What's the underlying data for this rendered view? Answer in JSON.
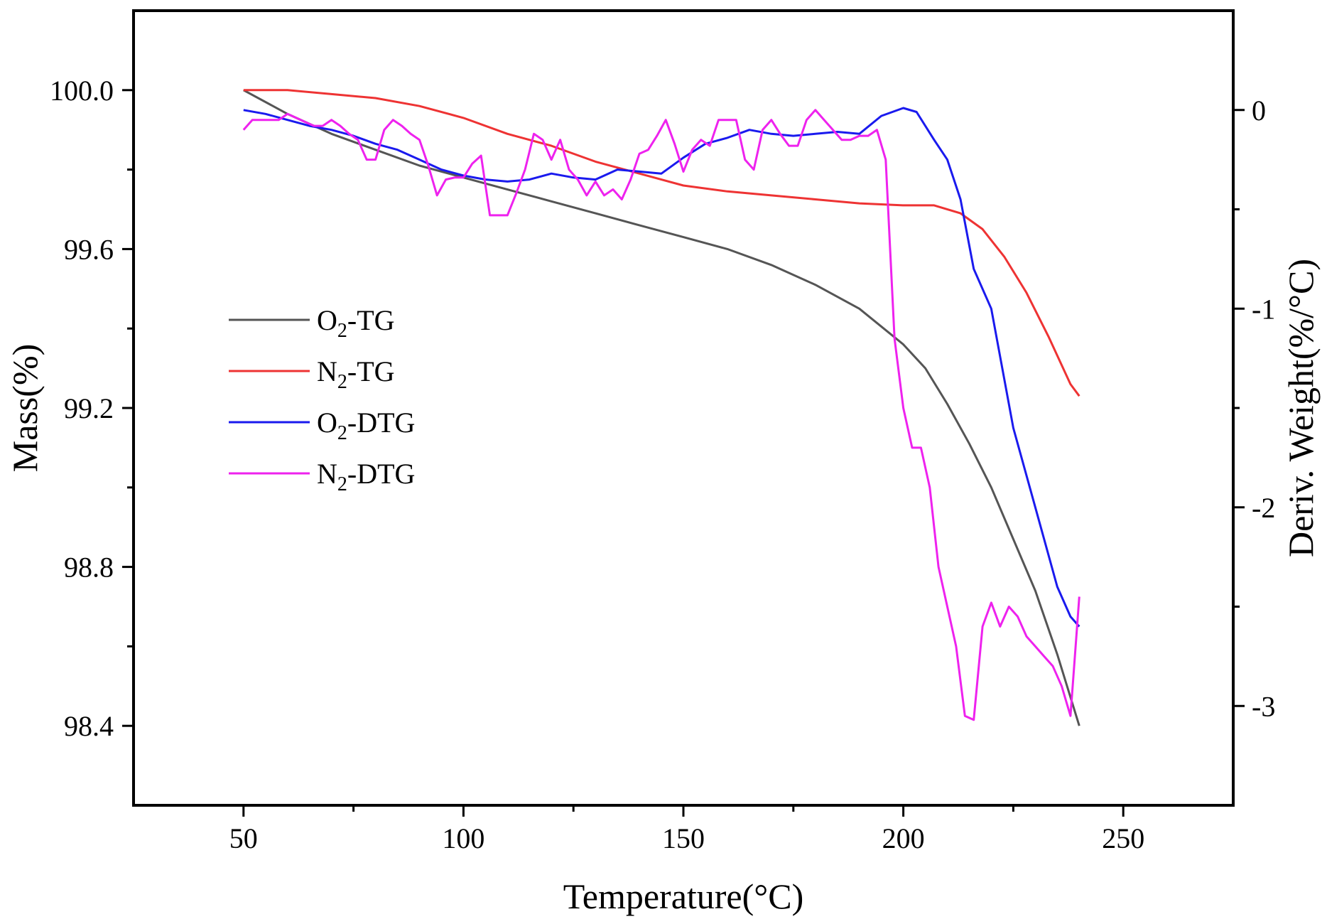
{
  "chart_data": {
    "type": "line",
    "title": "",
    "xlabel": "Temperature(°C)",
    "ylabel_left": "Mass(%)",
    "ylabel_right": "Deriv. Weight(%/°C)",
    "xlim": [
      25,
      275
    ],
    "ylim_left": [
      98.2,
      100.2
    ],
    "ylim_right": [
      -3.5,
      0.5
    ],
    "x_ticks": [
      50,
      100,
      150,
      200,
      250
    ],
    "x_tick_labels": [
      "50",
      "100",
      "150",
      "200",
      "250"
    ],
    "y_left_ticks": [
      98.4,
      98.8,
      99.2,
      99.6,
      100.0
    ],
    "y_left_tick_labels": [
      "98.4",
      "98.8",
      "99.2",
      "99.6",
      "100.0"
    ],
    "y_right_ticks": [
      -3,
      -2,
      -1,
      0
    ],
    "y_right_tick_labels": [
      "-3",
      "-2",
      "-1",
      "0"
    ],
    "grid": false,
    "legend_position": "center-left",
    "series": [
      {
        "name": "O2-TG",
        "label_main": "O",
        "label_sub": "2",
        "label_rest": "-TG",
        "axis": "left",
        "color": "#555555",
        "x": [
          50,
          60,
          70,
          80,
          90,
          100,
          110,
          120,
          130,
          140,
          150,
          160,
          170,
          180,
          190,
          200,
          205,
          210,
          215,
          220,
          225,
          230,
          235,
          240
        ],
        "y": [
          100.0,
          99.94,
          99.89,
          99.85,
          99.81,
          99.78,
          99.75,
          99.72,
          99.69,
          99.66,
          99.63,
          99.6,
          99.56,
          99.51,
          99.45,
          99.36,
          99.3,
          99.21,
          99.11,
          99.0,
          98.87,
          98.74,
          98.58,
          98.4
        ]
      },
      {
        "name": "N2-TG",
        "label_main": "N",
        "label_sub": "2",
        "label_rest": "-TG",
        "axis": "left",
        "color": "#ee3333",
        "x": [
          50,
          60,
          70,
          80,
          90,
          100,
          110,
          120,
          130,
          140,
          150,
          160,
          170,
          180,
          190,
          200,
          207,
          213,
          218,
          223,
          228,
          233,
          238,
          240
        ],
        "y": [
          100.0,
          100.0,
          99.99,
          99.98,
          99.96,
          99.93,
          99.89,
          99.86,
          99.82,
          99.79,
          99.76,
          99.745,
          99.735,
          99.725,
          99.715,
          99.71,
          99.71,
          99.69,
          99.65,
          99.58,
          99.49,
          99.38,
          99.26,
          99.23
        ]
      },
      {
        "name": "O2-DTG",
        "label_main": "O",
        "label_sub": "2",
        "label_rest": "-DTG",
        "axis": "right",
        "color": "#1a1aee",
        "x": [
          50,
          55,
          60,
          65,
          70,
          75,
          80,
          85,
          90,
          95,
          100,
          105,
          110,
          115,
          120,
          125,
          130,
          135,
          140,
          145,
          150,
          155,
          160,
          165,
          170,
          175,
          180,
          185,
          190,
          195,
          200,
          203,
          207,
          210,
          213,
          216,
          220,
          225,
          230,
          235,
          238,
          240
        ],
        "y": [
          0.0,
          -0.02,
          -0.05,
          -0.08,
          -0.1,
          -0.13,
          -0.17,
          -0.2,
          -0.25,
          -0.3,
          -0.33,
          -0.35,
          -0.36,
          -0.35,
          -0.32,
          -0.34,
          -0.35,
          -0.3,
          -0.31,
          -0.32,
          -0.24,
          -0.17,
          -0.14,
          -0.1,
          -0.12,
          -0.13,
          -0.12,
          -0.11,
          -0.12,
          -0.03,
          0.01,
          -0.01,
          -0.15,
          -0.25,
          -0.45,
          -0.8,
          -1.0,
          -1.6,
          -2.0,
          -2.4,
          -2.55,
          -2.6
        ]
      },
      {
        "name": "N2-DTG",
        "label_main": "N",
        "label_sub": "2",
        "label_rest": "-DTG",
        "axis": "right",
        "color": "#ee22ee",
        "x": [
          50,
          52,
          55,
          58,
          60,
          63,
          66,
          68,
          70,
          72,
          74,
          76,
          78,
          80,
          82,
          84,
          86,
          88,
          90,
          92,
          94,
          96,
          98,
          100,
          102,
          104,
          106,
          108,
          110,
          112,
          114,
          116,
          118,
          120,
          122,
          124,
          126,
          128,
          130,
          132,
          134,
          136,
          138,
          140,
          142,
          144,
          146,
          148,
          150,
          152,
          154,
          156,
          158,
          160,
          162,
          164,
          166,
          168,
          170,
          172,
          174,
          176,
          178,
          180,
          182,
          184,
          186,
          188,
          190,
          192,
          194,
          196,
          198,
          200,
          202,
          204,
          206,
          208,
          210,
          212,
          214,
          216,
          218,
          220,
          222,
          224,
          226,
          228,
          230,
          232,
          234,
          236,
          238,
          240
        ],
        "y": [
          -0.1,
          -0.05,
          -0.05,
          -0.05,
          -0.02,
          -0.05,
          -0.08,
          -0.08,
          -0.05,
          -0.08,
          -0.12,
          -0.15,
          -0.25,
          -0.25,
          -0.1,
          -0.05,
          -0.08,
          -0.12,
          -0.15,
          -0.28,
          -0.43,
          -0.35,
          -0.34,
          -0.34,
          -0.27,
          -0.23,
          -0.53,
          -0.53,
          -0.53,
          -0.42,
          -0.3,
          -0.12,
          -0.15,
          -0.25,
          -0.15,
          -0.3,
          -0.35,
          -0.43,
          -0.36,
          -0.43,
          -0.4,
          -0.45,
          -0.35,
          -0.22,
          -0.2,
          -0.13,
          -0.05,
          -0.17,
          -0.31,
          -0.2,
          -0.15,
          -0.18,
          -0.05,
          -0.05,
          -0.05,
          -0.25,
          -0.3,
          -0.1,
          -0.05,
          -0.12,
          -0.18,
          -0.18,
          -0.05,
          0.0,
          -0.05,
          -0.1,
          -0.15,
          -0.15,
          -0.13,
          -0.13,
          -0.1,
          -0.25,
          -1.15,
          -1.5,
          -1.7,
          -1.7,
          -1.9,
          -2.3,
          -2.5,
          -2.7,
          -3.05,
          -3.07,
          -2.6,
          -2.48,
          -2.6,
          -2.5,
          -2.55,
          -2.65,
          -2.7,
          -2.75,
          -2.8,
          -2.9,
          -3.05,
          -2.45
        ]
      }
    ]
  }
}
